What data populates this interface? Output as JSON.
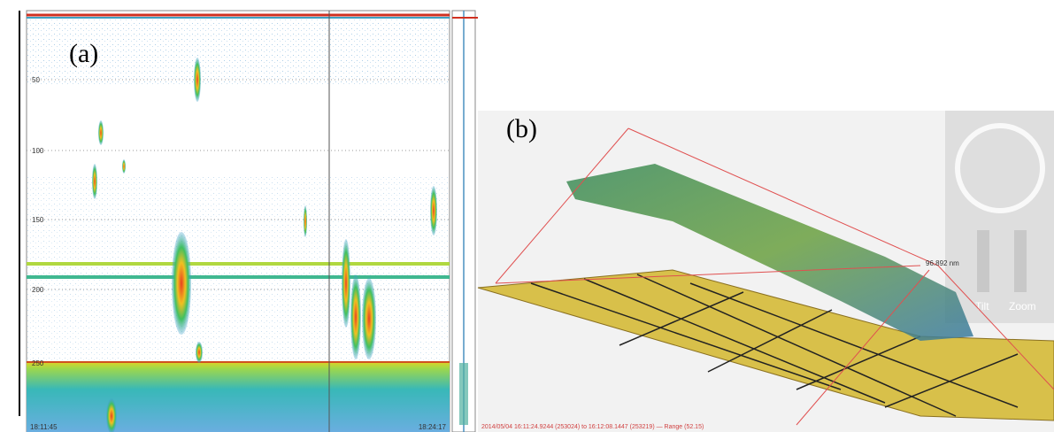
{
  "panels": [
    {
      "label": "(a)",
      "depth_labels": [
        "50",
        "100",
        "150",
        "200",
        "250"
      ],
      "time_start": "18:11:45",
      "time_end": "18:24:17"
    },
    {
      "label": "(b)",
      "distance_label": "96.892 nm",
      "footer": "2014/05/04 16:11:24.9244 (253024) to 16:12:08.1447 (253219) — Range (52.15)",
      "controls": [
        "Tilt",
        "Zoom"
      ]
    }
  ]
}
